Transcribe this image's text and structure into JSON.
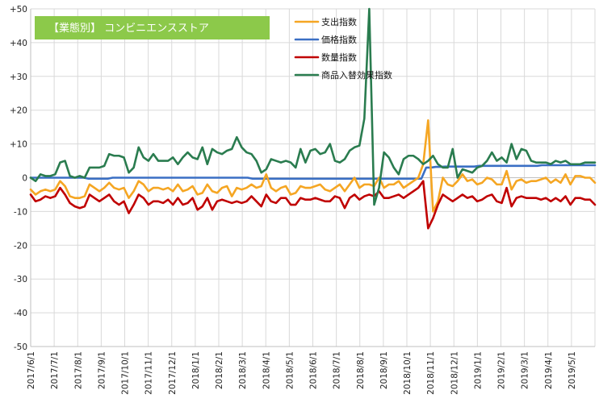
{
  "chart_data": {
    "type": "line",
    "title": "【業態別】 コンビニエンスストア",
    "title_bg": "#8cc94a",
    "xlabel": "",
    "ylabel": "",
    "ylim": [
      -50,
      50
    ],
    "y_ticks": [
      50,
      40,
      30,
      20,
      10,
      0,
      -10,
      -20,
      -30,
      -40,
      -50
    ],
    "y_tick_labels": [
      "+50",
      "+40",
      "+30",
      "+20",
      "+10",
      "0",
      "-10",
      "-20",
      "-30",
      "-40",
      "-50"
    ],
    "x_tick_labels": [
      "2017/6/1",
      "2017/7/1",
      "2017/8/1",
      "2017/9/1",
      "2017/10/1",
      "2017/11/1",
      "2017/12/1",
      "2018/1/1",
      "2018/2/1",
      "2018/3/1",
      "2018/4/1",
      "2018/5/1",
      "2018/6/1",
      "2018/7/1",
      "2018/8/1",
      "2018/9/1",
      "2018/10/1",
      "2018/11/1",
      "2018/12/1",
      "2019/1/1",
      "2019/2/1",
      "2019/3/1",
      "2019/4/1",
      "2019/5/1"
    ],
    "x_period": "weekly",
    "grid": true,
    "legend_position": "top-center",
    "series": [
      {
        "name": "支出指数",
        "color": "#f5a623",
        "values": [
          -3.5,
          -5,
          -4,
          -3.5,
          -4,
          -3.5,
          -1,
          -2.5,
          -5.5,
          -6,
          -6,
          -5.5,
          -2,
          -3,
          -4,
          -3,
          -1.5,
          -3,
          -3.5,
          -3,
          -6,
          -4,
          -1,
          -2,
          -4,
          -3,
          -3,
          -3.5,
          -3,
          -4,
          -2,
          -4,
          -3.5,
          -2.5,
          -5,
          -4.5,
          -2,
          -4,
          -4.5,
          -3,
          -2.5,
          -5.5,
          -3,
          -3.5,
          -3,
          -2,
          -3,
          -2.5,
          1,
          -3,
          -4,
          -3,
          -2.5,
          -5,
          -4.5,
          -2.5,
          -3,
          -3,
          -2.5,
          -2,
          -3.5,
          -4,
          -3,
          -2,
          -4,
          -2,
          0,
          -3,
          -2,
          -2,
          -2.5,
          0,
          -3,
          -2,
          -2,
          -1,
          -3,
          -2,
          -1,
          0,
          4,
          17,
          -10,
          -7,
          0,
          -2,
          -2.5,
          -1,
          1,
          -1,
          -0.5,
          -2,
          -1.5,
          0,
          -0.5,
          -2,
          -2,
          2,
          -3.5,
          -1,
          -0.5,
          -1.5,
          -1,
          -1,
          -0.5,
          0,
          -1.5,
          -0.5,
          -1.5,
          1,
          -2,
          0.5,
          0.5,
          0,
          0,
          -1.5
        ]
      },
      {
        "name": "価格指数",
        "color": "#3a6fc4",
        "values": [
          0,
          0,
          0,
          0,
          0,
          0,
          0,
          0,
          0,
          0,
          0,
          0,
          -0.3,
          -0.3,
          -0.3,
          -0.3,
          -0.3,
          0,
          0,
          0,
          0,
          0,
          0,
          0,
          0,
          0,
          0,
          0,
          0,
          0,
          0,
          0,
          0,
          0,
          0,
          0,
          0,
          0,
          0,
          0,
          0,
          0,
          0,
          0,
          0,
          0,
          -0.3,
          -0.3,
          -0.3,
          -0.3,
          -0.3,
          -0.3,
          -0.3,
          -0.3,
          -0.3,
          -0.3,
          -0.3,
          -0.3,
          -0.3,
          -0.3,
          -0.3,
          -0.3,
          -0.3,
          -0.3,
          -0.3,
          -0.3,
          -0.3,
          -0.3,
          -0.3,
          -0.3,
          -0.3,
          -0.3,
          -0.3,
          -0.3,
          -0.3,
          -0.3,
          -0.3,
          -0.3,
          -0.3,
          -0.3,
          -0.3,
          -0.3,
          3,
          3,
          3.2,
          3.2,
          3.3,
          3.3,
          3.3,
          3.3,
          3.3,
          3.3,
          3.3,
          3.5,
          3.5,
          3.5,
          3.5,
          3.5,
          3.5,
          3.5,
          3.5,
          3.5,
          3.5,
          3.5,
          3.5,
          3.5,
          3.7,
          3.7,
          3.7,
          3.7,
          3.7,
          3.7,
          3.7,
          3.7,
          3.7,
          3.7,
          3.7,
          3.7
        ]
      },
      {
        "name": "数量指数",
        "color": "#c00000",
        "values": [
          -5,
          -7,
          -6.5,
          -5.5,
          -6,
          -5.5,
          -3,
          -5,
          -7.5,
          -8.5,
          -9,
          -8.5,
          -5,
          -6,
          -7,
          -6,
          -5,
          -7,
          -8,
          -7,
          -10.5,
          -8,
          -5,
          -6,
          -8,
          -7,
          -7,
          -7.5,
          -6.5,
          -8,
          -6,
          -8,
          -7.5,
          -6,
          -9.5,
          -8.5,
          -6,
          -9.5,
          -7,
          -6.5,
          -7,
          -7.5,
          -7,
          -7.5,
          -7,
          -5.5,
          -7,
          -8.5,
          -5,
          -7,
          -7.5,
          -6,
          -6,
          -8,
          -8,
          -6,
          -6.5,
          -6.5,
          -6,
          -6.5,
          -7,
          -7,
          -5.5,
          -6,
          -9,
          -6,
          -5,
          -6.5,
          -5.5,
          -5,
          -5.5,
          -4,
          -6,
          -6,
          -5.5,
          -5,
          -6,
          -5,
          -4,
          -3,
          -1,
          -15,
          -12,
          -8,
          -5,
          -6,
          -7,
          -6,
          -5,
          -6,
          -5.5,
          -7,
          -6.5,
          -5.5,
          -5,
          -7,
          -7.5,
          -3,
          -8.5,
          -6,
          -5.5,
          -6,
          -6,
          -6,
          -6.5,
          -6,
          -7,
          -6,
          -7,
          -5.5,
          -8,
          -6,
          -6,
          -6.5,
          -6.5,
          -8
        ]
      },
      {
        "name": "商品入替効果指数",
        "color": "#2a7c4f",
        "values": [
          0,
          -1,
          1,
          0.5,
          0.5,
          1,
          4.5,
          5,
          0.5,
          0,
          0.5,
          0,
          3,
          3,
          3,
          3.5,
          7,
          6.5,
          6.5,
          6,
          1.5,
          3,
          9,
          6,
          5,
          7,
          5,
          5,
          5,
          6,
          4,
          6,
          7.5,
          6,
          5.5,
          9,
          4,
          8.5,
          7.5,
          7,
          8,
          8.5,
          12,
          9,
          7.5,
          7,
          5,
          1.5,
          2.5,
          5.5,
          5,
          4.5,
          5,
          4.5,
          3,
          8.5,
          4.5,
          8,
          8.5,
          7,
          7.5,
          10,
          5,
          4.5,
          5.5,
          8,
          9,
          9.5,
          17.5,
          50,
          -8,
          -3,
          7.5,
          6,
          3,
          1,
          5.5,
          6.5,
          6.5,
          5.5,
          4,
          5,
          6.5,
          4,
          3,
          3,
          8.5,
          0,
          2.5,
          2,
          1.5,
          3,
          3.5,
          5,
          7.5,
          5,
          6,
          4.5,
          10,
          5.5,
          8.5,
          8,
          5,
          4.5,
          4.5,
          4.5,
          4,
          5,
          4.5,
          5,
          4,
          4,
          4,
          4.5,
          4.5,
          4.5
        ]
      }
    ]
  }
}
